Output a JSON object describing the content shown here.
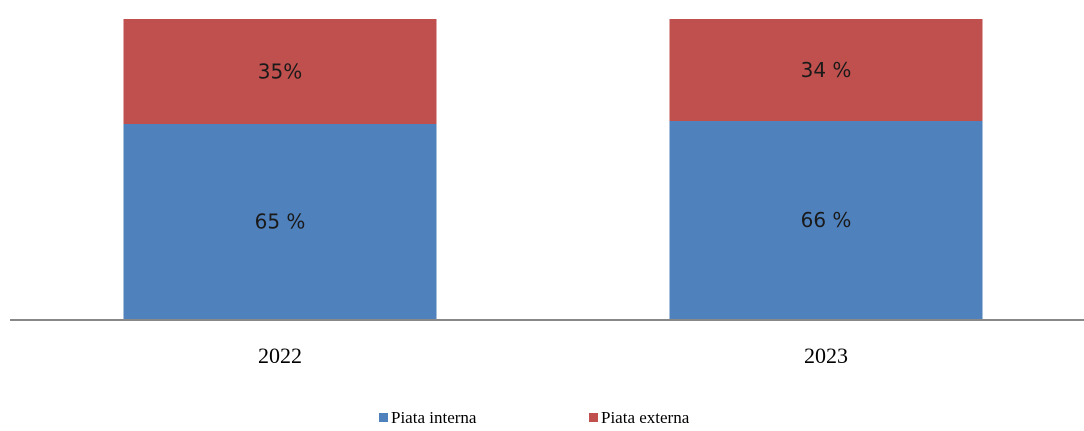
{
  "chart_data": {
    "type": "stacked_bar",
    "categories": [
      "2022",
      "2023"
    ],
    "series": [
      {
        "name": "Piata interna",
        "color": "#4f81bd",
        "values": [
          65,
          66
        ],
        "value_labels": [
          "65 %",
          "66 %"
        ]
      },
      {
        "name": "Piata externa",
        "color": "#c0504d",
        "values": [
          35,
          34
        ],
        "value_labels": [
          "35%",
          "34 %"
        ]
      }
    ]
  }
}
